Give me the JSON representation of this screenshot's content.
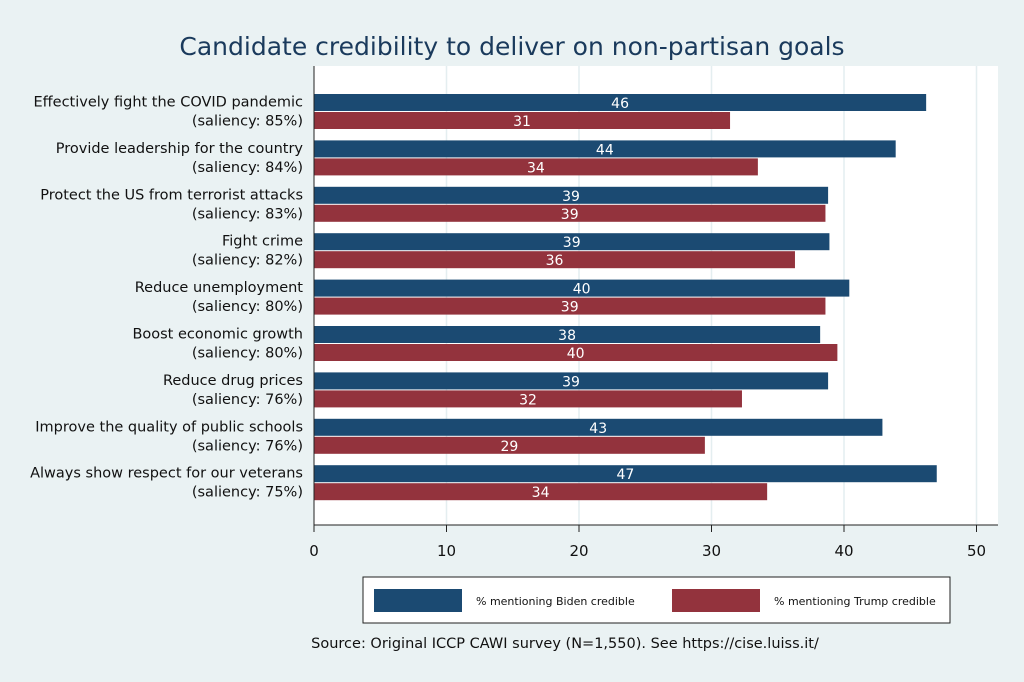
{
  "chart_data": {
    "type": "bar",
    "orientation": "horizontal",
    "title": "Candidate credibility to deliver on non-partisan goals",
    "categories": [
      [
        "Effectively fight the COVID pandemic",
        "(saliency: 85%)"
      ],
      [
        "Provide leadership for the country",
        "(saliency: 84%)"
      ],
      [
        "Protect the US from terrorist attacks",
        "(saliency: 83%)"
      ],
      [
        "Fight crime",
        "(saliency: 82%)"
      ],
      [
        "Reduce unemployment",
        "(saliency: 80%)"
      ],
      [
        "Boost economic growth",
        "(saliency: 80%)"
      ],
      [
        "Reduce drug prices",
        "(saliency: 76%)"
      ],
      [
        "Improve the quality of public schools",
        "(saliency: 76%)"
      ],
      [
        "Always show respect for our veterans",
        "(saliency: 75%)"
      ]
    ],
    "series": [
      {
        "name": "% mentioning Biden credible",
        "color": "#1b4a72",
        "values": [
          46.2,
          43.9,
          38.8,
          38.9,
          40.4,
          38.2,
          38.8,
          42.9,
          47.0
        ],
        "labels": [
          "46",
          "44",
          "39",
          "39",
          "40",
          "38",
          "39",
          "43",
          "47"
        ]
      },
      {
        "name": "% mentioning Trump credible",
        "color": "#93333d",
        "values": [
          31.4,
          33.5,
          38.6,
          36.3,
          38.6,
          39.5,
          32.3,
          29.5,
          34.2
        ],
        "labels": [
          "31",
          "34",
          "39",
          "36",
          "39",
          "40",
          "32",
          "29",
          "34"
        ]
      }
    ],
    "xticks": [
      "0",
      "10",
      "20",
      "30",
      "40",
      "50"
    ],
    "xlim": [
      0,
      52
    ],
    "xlabel": "",
    "ylabel": "",
    "grid": true,
    "legend": "bottom",
    "source": "Source: Original ICCP CAWI survey (N=1,550). See https://cise.luiss.it/"
  }
}
